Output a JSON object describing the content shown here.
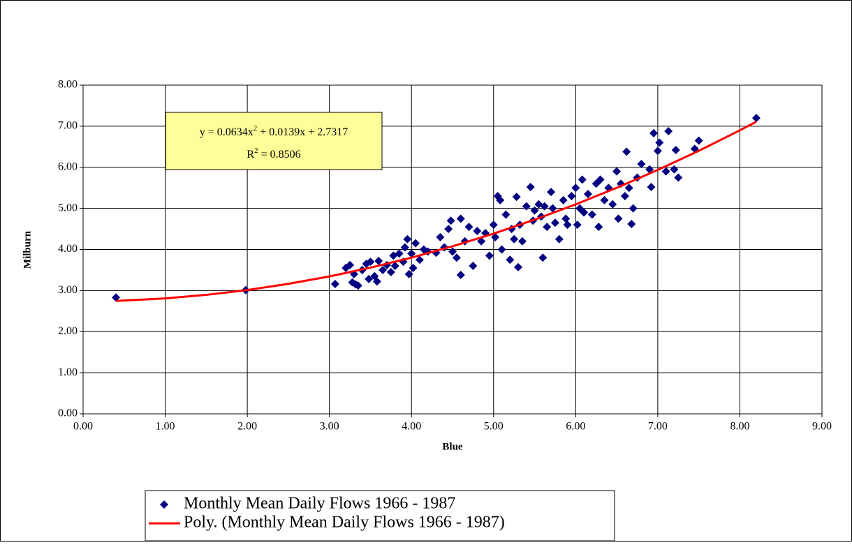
{
  "chart_data": {
    "type": "scatter",
    "x_label": "Blue",
    "y_label": "Milburn",
    "xlim": [
      0,
      9
    ],
    "ylim": [
      0,
      8
    ],
    "xticks": [
      {
        "value": 0,
        "label": "0.00"
      },
      {
        "value": 1,
        "label": "1.00"
      },
      {
        "value": 2,
        "label": "2.00"
      },
      {
        "value": 3,
        "label": "3.00"
      },
      {
        "value": 4,
        "label": "4.00"
      },
      {
        "value": 5,
        "label": "5.00"
      },
      {
        "value": 6,
        "label": "6.00"
      },
      {
        "value": 7,
        "label": "7.00"
      },
      {
        "value": 8,
        "label": "8.00"
      },
      {
        "value": 9,
        "label": "9.00"
      }
    ],
    "yticks": [
      {
        "value": 0,
        "label": "0.00"
      },
      {
        "value": 1,
        "label": "1.00"
      },
      {
        "value": 2,
        "label": "2.00"
      },
      {
        "value": 3,
        "label": "3.00"
      },
      {
        "value": 4,
        "label": "4.00"
      },
      {
        "value": 5,
        "label": "5.00"
      },
      {
        "value": 6,
        "label": "6.00"
      },
      {
        "value": 7,
        "label": "7.00"
      },
      {
        "value": 8,
        "label": "8.00"
      }
    ],
    "grid": true,
    "legend": "bottom",
    "series": [
      {
        "name": "Monthly Mean Daily Flows 1966 - 1987",
        "color": "#000080",
        "x": [
          0.4,
          1.98,
          3.07,
          3.2,
          3.25,
          3.28,
          3.3,
          3.32,
          3.35,
          3.4,
          3.45,
          3.48,
          3.5,
          3.55,
          3.58,
          3.6,
          3.65,
          3.7,
          3.75,
          3.78,
          3.8,
          3.85,
          3.9,
          3.92,
          3.95,
          3.97,
          4.0,
          4.02,
          4.05,
          4.1,
          4.15,
          4.2,
          4.3,
          4.35,
          4.4,
          4.45,
          4.48,
          4.5,
          4.55,
          4.6,
          4.6,
          4.65,
          4.7,
          4.75,
          4.8,
          4.85,
          4.9,
          4.95,
          5.0,
          5.02,
          5.05,
          5.08,
          5.1,
          5.15,
          5.2,
          5.22,
          5.25,
          5.28,
          5.3,
          5.32,
          5.35,
          5.4,
          5.45,
          5.48,
          5.5,
          5.55,
          5.58,
          5.6,
          5.62,
          5.65,
          5.7,
          5.72,
          5.75,
          5.8,
          5.85,
          5.88,
          5.9,
          5.95,
          6.0,
          6.02,
          6.05,
          6.08,
          6.1,
          6.15,
          6.2,
          6.25,
          6.28,
          6.3,
          6.35,
          6.4,
          6.45,
          6.5,
          6.52,
          6.55,
          6.6,
          6.62,
          6.65,
          6.68,
          6.7,
          6.75,
          6.8,
          6.9,
          6.92,
          6.95,
          7.0,
          7.02,
          7.1,
          7.13,
          7.2,
          7.22,
          7.25,
          7.45,
          7.5,
          8.2
        ],
        "values": [
          2.83,
          3.01,
          3.16,
          3.55,
          3.62,
          3.2,
          3.4,
          3.15,
          3.12,
          3.5,
          3.65,
          3.28,
          3.7,
          3.35,
          3.22,
          3.72,
          3.5,
          3.62,
          3.45,
          3.85,
          3.6,
          3.9,
          3.7,
          4.05,
          4.25,
          3.4,
          3.9,
          3.55,
          4.15,
          3.75,
          4.0,
          3.95,
          3.92,
          4.3,
          4.05,
          4.5,
          4.7,
          3.95,
          3.8,
          4.75,
          3.38,
          4.2,
          4.55,
          3.6,
          4.45,
          4.2,
          4.4,
          3.85,
          4.6,
          4.3,
          5.3,
          5.2,
          4.0,
          4.85,
          3.75,
          4.5,
          4.25,
          5.28,
          3.57,
          4.6,
          4.2,
          5.05,
          5.52,
          4.7,
          4.95,
          5.1,
          4.8,
          3.8,
          5.05,
          4.55,
          5.4,
          5.0,
          4.65,
          4.25,
          5.2,
          4.75,
          4.6,
          5.3,
          5.5,
          4.6,
          5.0,
          5.7,
          4.9,
          5.35,
          4.85,
          5.6,
          4.55,
          5.7,
          5.2,
          5.5,
          5.1,
          5.9,
          4.75,
          5.6,
          5.3,
          6.38,
          5.5,
          4.62,
          5.0,
          5.75,
          6.08,
          5.95,
          5.52,
          6.83,
          6.4,
          6.6,
          5.9,
          6.88,
          5.95,
          6.42,
          5.75,
          6.45,
          6.65,
          7.2
        ]
      },
      {
        "name": "Poly. (Monthly Mean Daily Flows 1966 - 1987)",
        "color": "#ff0000",
        "type": "line",
        "x": [
          0.4,
          1,
          1.5,
          2,
          2.5,
          3,
          3.5,
          4,
          4.5,
          5,
          5.5,
          6,
          6.5,
          7,
          7.5,
          8,
          8.2
        ],
        "values": [
          2.747,
          2.809,
          2.895,
          3.013,
          3.163,
          3.344,
          3.557,
          3.802,
          4.078,
          4.386,
          4.726,
          5.098,
          5.501,
          5.936,
          6.402,
          6.901,
          7.109
        ]
      }
    ],
    "annotation": {
      "equation": [
        "y = 0.0634x",
        "2",
        " + 0.0139x + 2.7317"
      ],
      "r_squared": [
        "R",
        "2",
        " = 0.8506"
      ],
      "color": "#ffff99"
    }
  }
}
